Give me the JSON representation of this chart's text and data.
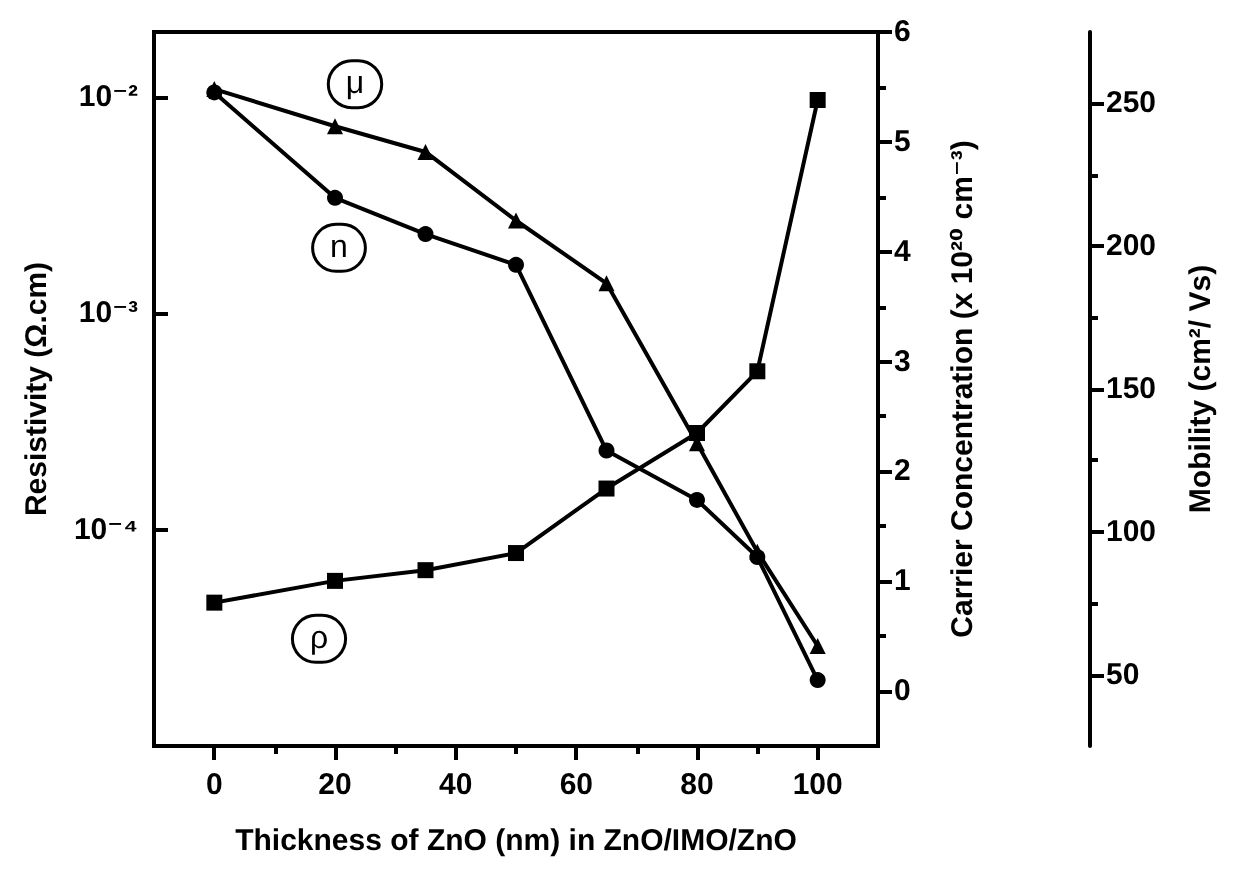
{
  "chart_data": {
    "type": "line",
    "xlabel": "Thickness of ZnO (nm) in ZnO/IMO/ZnO",
    "ylabel": "Resistivity (Ω.cm)",
    "y2label": "Carrier Concentration (x 10²⁰ cm⁻³)",
    "y3label": "Mobility (cm²/ Vs)",
    "x": [
      0,
      20,
      35,
      50,
      65,
      80,
      90,
      100
    ],
    "xlim": [
      -10,
      110
    ],
    "xticks": [
      0,
      20,
      40,
      60,
      80,
      100
    ],
    "log": true,
    "ylim": [
      1e-05,
      0.02
    ],
    "yticks": [
      {
        "value": 0.0001,
        "label": "10⁻⁴"
      },
      {
        "value": 0.001,
        "label": "10⁻³"
      },
      {
        "value": 0.01,
        "label": "10⁻²"
      }
    ],
    "y2lim": [
      -0.5,
      6
    ],
    "y2ticks": [
      0,
      1,
      2,
      3,
      4,
      5,
      6
    ],
    "y3lim": [
      25,
      275
    ],
    "y3ticks": [
      50,
      100,
      150,
      200,
      250
    ],
    "grid": false,
    "legend": false,
    "line_style": "solid",
    "series": [
      {
        "name": "ρ",
        "color": "#000000",
        "marker": "square",
        "values": [
          4.6e-05,
          5.8e-05,
          6.5e-05,
          7.8e-05,
          0.000155,
          0.00028,
          0.00054,
          0.0097
        ]
      },
      {
        "name": "n",
        "color": "#000000",
        "marker": "circle",
        "axis": "y2",
        "values": [
          5.45,
          4.49,
          4.16,
          3.88,
          2.19,
          1.74,
          1.22,
          0.1
        ]
      },
      {
        "name": "μ",
        "color": "#000000",
        "marker": "triangle",
        "axis": "y3",
        "values": [
          255,
          242,
          233,
          209,
          187,
          131,
          93,
          60
        ]
      }
    ]
  }
}
